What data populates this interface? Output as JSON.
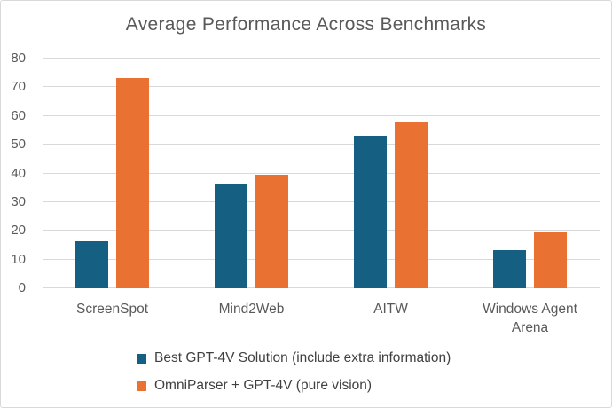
{
  "title": "Average Performance Across Benchmarks",
  "colors": {
    "series1": "#156082",
    "series2": "#E97132",
    "gridline": "#D9D9D9",
    "axis_text": "#595959",
    "legend_text": "#404040",
    "frame_border": "#D9D9D9",
    "background": "#FFFFFF"
  },
  "chart_data": {
    "type": "bar",
    "title": "Average Performance Across Benchmarks",
    "categories": [
      "ScreenSpot",
      "Mind2Web",
      "AITW",
      "Windows Agent Arena"
    ],
    "series": [
      {
        "name": "Best GPT-4V Solution (include extra information)",
        "color": "#156082",
        "values": [
          16.2,
          36.4,
          53.0,
          13.3
        ]
      },
      {
        "name": "OmniParser + GPT-4V (pure vision)",
        "color": "#E97132",
        "values": [
          73.0,
          39.4,
          57.7,
          19.5
        ]
      }
    ],
    "xlabel": "",
    "ylabel": "",
    "ylim": [
      0,
      80
    ],
    "ytick_step": 10,
    "yticks": [
      0,
      10,
      20,
      30,
      40,
      50,
      60,
      70,
      80
    ],
    "grid": true,
    "legend_position": "bottom-left"
  }
}
